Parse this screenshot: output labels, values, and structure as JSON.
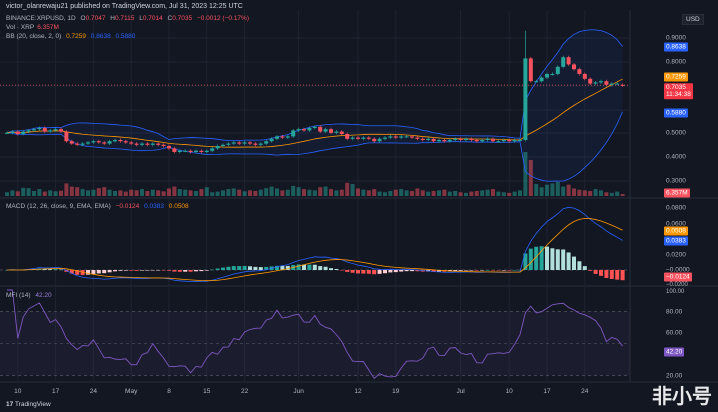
{
  "header": {
    "publisher_line": "victor_olanrewaju21 published on TradingView.com, Jul 31, 2023 12:25 UTC"
  },
  "legend": {
    "symbol": "BINANCE:XRPUSD, 1D",
    "o_label": "O",
    "o": "0.7047",
    "h_label": "H",
    "h": "0.7115",
    "l_label": "L",
    "l": "0.7014",
    "c_label": "C",
    "c": "0.7035",
    "change": "−0.0012 (−0.17%)",
    "vol_label": "Vol · XRP",
    "vol": "6.357M",
    "bb_label": "BB (20, close, 2, 0)",
    "bb_basis": "0.7259",
    "bb_upper": "0.8638",
    "bb_lower": "0.5880",
    "macd_label": "MACD (12, 26, close, 9, EMA, EMA)",
    "macd_hist": "−0.0124",
    "macd": "0.0383",
    "macd_signal": "0.0508",
    "mfi_label": "MFI (14)",
    "mfi": "42.20"
  },
  "axis": {
    "currency": "USD",
    "price_ticks": [
      "0.9000",
      "0.8000",
      "0.5000",
      "0.4000",
      "0.3000"
    ],
    "macd_ticks": [
      "0.0800",
      "0.0600",
      "0.0200",
      "−0.0000",
      "−0.0200"
    ],
    "mfi_ticks": [
      "100.00",
      "80.00",
      "60.00",
      "20.00"
    ],
    "time_ticks": [
      "10",
      "17",
      "24",
      "May",
      "8",
      "15",
      "22",
      "Jun",
      "12",
      "19",
      "Jul",
      "10",
      "17",
      "24"
    ],
    "countdown": "11:34:38"
  },
  "colors": {
    "up": "#26a69a",
    "down": "#f7525f",
    "bb": "#2962ff",
    "basis": "#ff9800",
    "macd": "#2962ff",
    "signal": "#ff9800",
    "mfi": "#7e57c2"
  },
  "footer": {
    "brand": "TradingView"
  },
  "watermark": "非小号",
  "chart_data": {
    "type": "candlestick",
    "symbol": "BINANCE:XRPUSD",
    "interval": "1D",
    "x_range": [
      "2023-04-08",
      "2023-07-31"
    ],
    "ylim": [
      0.28,
      0.96
    ],
    "grid": true,
    "closes": [
      0.505,
      0.51,
      0.5,
      0.51,
      0.515,
      0.52,
      0.525,
      0.51,
      0.515,
      0.52,
      0.51,
      0.47,
      0.46,
      0.455,
      0.46,
      0.465,
      0.47,
      0.465,
      0.46,
      0.47,
      0.475,
      0.47,
      0.465,
      0.46,
      0.455,
      0.46,
      0.455,
      0.46,
      0.455,
      0.45,
      0.44,
      0.425,
      0.43,
      0.43,
      0.425,
      0.43,
      0.425,
      0.43,
      0.44,
      0.45,
      0.455,
      0.46,
      0.465,
      0.46,
      0.465,
      0.46,
      0.455,
      0.46,
      0.47,
      0.48,
      0.49,
      0.485,
      0.49,
      0.515,
      0.52,
      0.515,
      0.525,
      0.53,
      0.51,
      0.52,
      0.505,
      0.51,
      0.5,
      0.48,
      0.485,
      0.48,
      0.485,
      0.48,
      0.47,
      0.48,
      0.485,
      0.49,
      0.485,
      0.49,
      0.49,
      0.485,
      0.48,
      0.475,
      0.48,
      0.47,
      0.475,
      0.47,
      0.475,
      0.48,
      0.475,
      0.48,
      0.475,
      0.47,
      0.475,
      0.48,
      0.47,
      0.47,
      0.475,
      0.47,
      0.475,
      0.475,
      0.815,
      0.72,
      0.72,
      0.735,
      0.75,
      0.75,
      0.78,
      0.82,
      0.79,
      0.77,
      0.75,
      0.73,
      0.71,
      0.715,
      0.72,
      0.705,
      0.71,
      0.71,
      0.7035
    ],
    "last_open": 0.7047,
    "notable_high": {
      "date": "2023-07-13",
      "value": 0.93
    },
    "volumes_m": [
      12,
      18,
      15,
      26,
      25,
      16,
      22,
      14,
      18,
      15,
      17,
      40,
      30,
      28,
      22,
      18,
      20,
      25,
      28,
      20,
      16,
      18,
      14,
      20,
      18,
      22,
      16,
      20,
      18,
      15,
      24,
      30,
      22,
      20,
      18,
      16,
      22,
      28,
      12,
      14,
      18,
      22,
      24,
      20,
      15,
      18,
      16,
      20,
      25,
      30,
      24,
      18,
      20,
      32,
      28,
      22,
      20,
      18,
      28,
      30,
      22,
      18,
      20,
      42,
      38,
      24,
      20,
      18,
      22,
      14,
      12,
      16,
      20,
      22,
      18,
      16,
      24,
      18,
      14,
      16,
      18,
      20,
      14,
      16,
      12,
      10,
      14,
      16,
      18,
      20,
      22,
      14,
      12,
      10,
      14,
      18,
      140,
      115,
      38,
      28,
      36,
      40,
      45,
      30,
      36,
      24,
      20,
      18,
      16,
      22,
      18,
      12,
      10,
      14,
      6.357
    ]
  }
}
